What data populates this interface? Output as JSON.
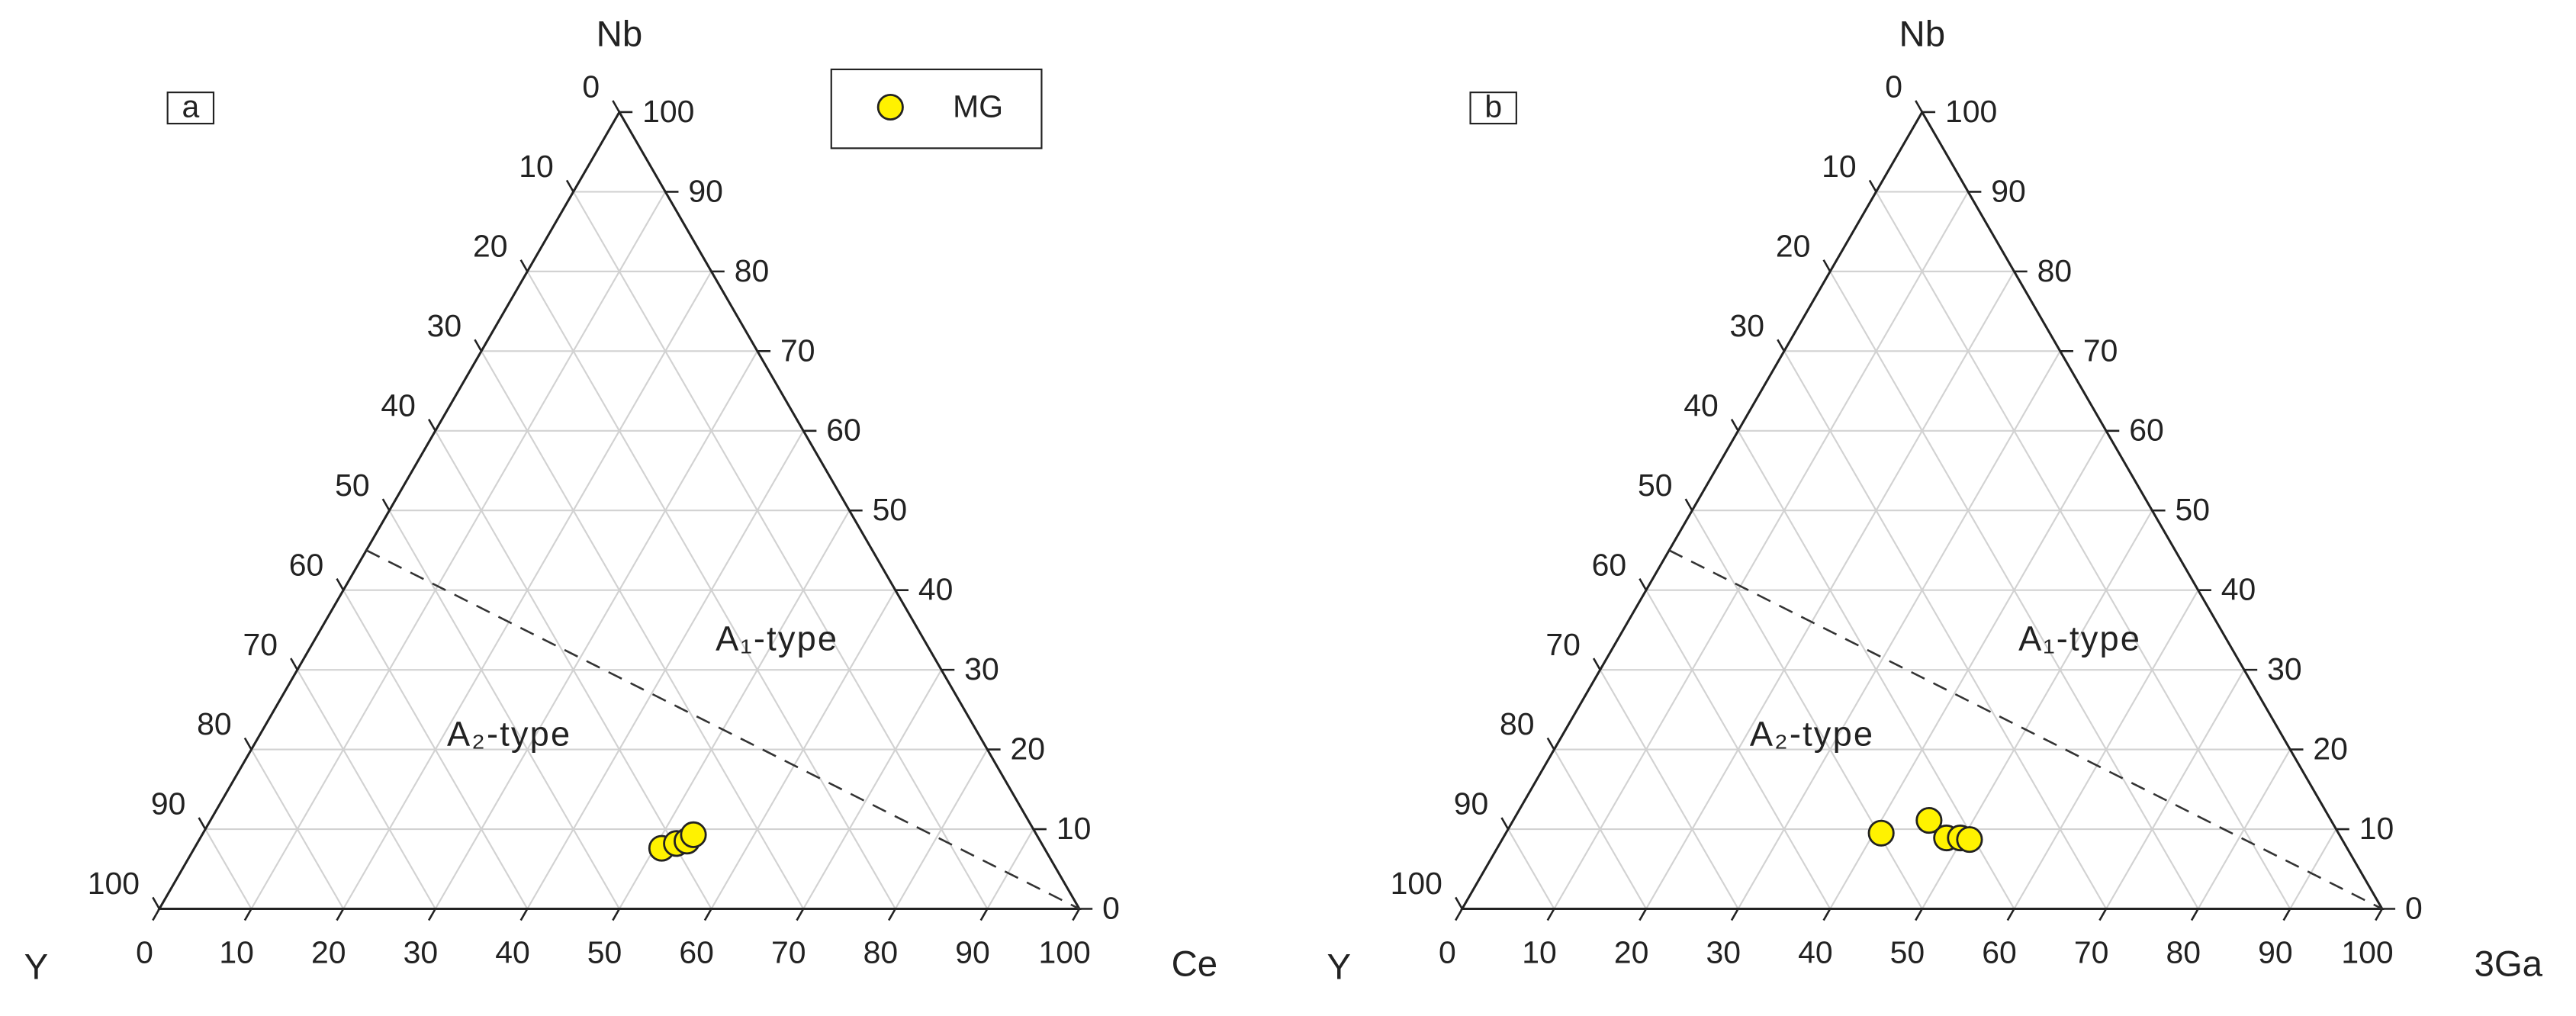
{
  "chart_data": [
    {
      "type": "ternary",
      "panel_label": "a",
      "top_label": "Nb",
      "left_label": "Y",
      "right_label": "Ce",
      "top_lim": [
        0,
        100
      ],
      "top_ticks": [
        0,
        10,
        20,
        30,
        40,
        50,
        60,
        70,
        80,
        90,
        100
      ],
      "left_lim": [
        0,
        100
      ],
      "left_ticks": [
        0,
        10,
        20,
        30,
        40,
        50,
        60,
        70,
        80,
        90,
        100
      ],
      "right_lim": [
        0,
        100
      ],
      "right_ticks": [
        0,
        10,
        20,
        30,
        40,
        50,
        60,
        70,
        80,
        90,
        100
      ],
      "grid": true,
      "legend": "top-right",
      "boundary": {
        "top": [
          45,
          0
        ],
        "left": [
          55,
          0
        ],
        "right": [
          0,
          100
        ]
      },
      "regions": [
        "A₁-type",
        "A₂-type"
      ],
      "series": [
        {
          "name": "MG",
          "color": "#fff200",
          "top": [
            7.6,
            8.2,
            8.5,
            9.3
          ],
          "left": [
            41.6,
            39.7,
            38.4,
            37.3
          ],
          "right": [
            50.8,
            52.1,
            53.1,
            53.4
          ]
        }
      ]
    },
    {
      "type": "ternary",
      "panel_label": "b",
      "top_label": "Nb",
      "left_label": "Y",
      "right_label": "3Ga",
      "top_lim": [
        0,
        100
      ],
      "top_ticks": [
        0,
        10,
        20,
        30,
        40,
        50,
        60,
        70,
        80,
        90,
        100
      ],
      "left_lim": [
        0,
        100
      ],
      "left_ticks": [
        0,
        10,
        20,
        30,
        40,
        50,
        60,
        70,
        80,
        90,
        100
      ],
      "right_lim": [
        0,
        100
      ],
      "right_ticks": [
        0,
        10,
        20,
        30,
        40,
        50,
        60,
        70,
        80,
        90,
        100
      ],
      "grid": true,
      "boundary": {
        "top": [
          45,
          0
        ],
        "left": [
          55,
          0
        ],
        "right": [
          0,
          100
        ]
      },
      "regions": [
        "A₁-type",
        "A₂-type"
      ],
      "series": [
        {
          "color": "#fff200",
          "top": [
            9.5,
            11.1,
            8.9,
            8.9,
            8.7
          ],
          "left": [
            49.7,
            43.7,
            42.9,
            41.4,
            40.5
          ],
          "right": [
            40.8,
            45.2,
            48.2,
            49.7,
            50.8
          ]
        }
      ]
    }
  ]
}
